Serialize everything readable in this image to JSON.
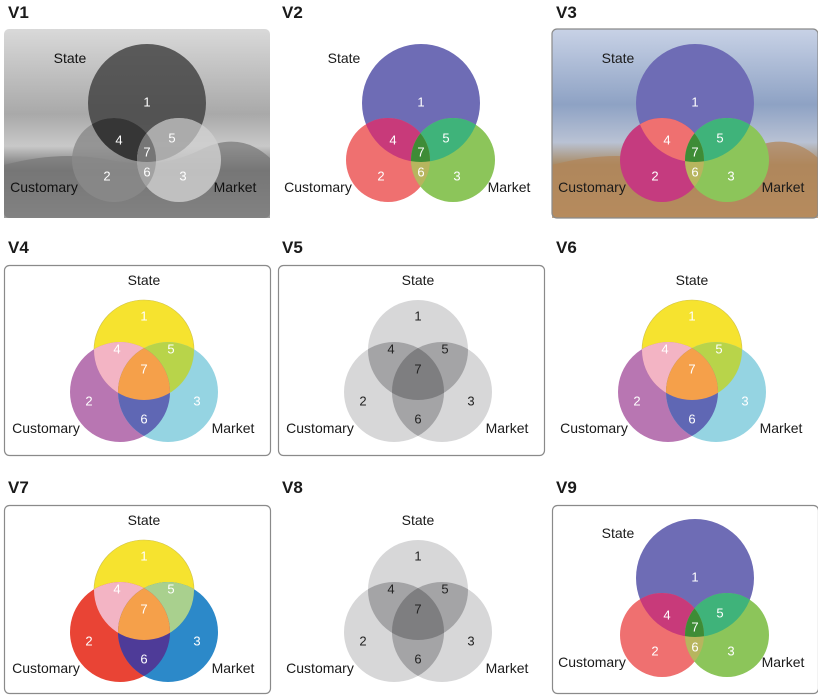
{
  "labels": {
    "state": "State",
    "customary": "Customary",
    "market": "Market"
  },
  "panels": [
    {
      "title": "V1",
      "style": "photo-gray",
      "numbers": [
        "1",
        "2",
        "3",
        "4",
        "5",
        "6",
        "7"
      ]
    },
    {
      "title": "V2",
      "style": "bubble",
      "numbers": [
        "1",
        "2",
        "3",
        "4",
        "5",
        "6",
        "7"
      ]
    },
    {
      "title": "V3",
      "style": "photo-color",
      "numbers": [
        "1",
        "2",
        "3",
        "4",
        "5",
        "6",
        "7"
      ]
    },
    {
      "title": "V4",
      "style": "classic-light",
      "numbers": [
        "1",
        "2",
        "3",
        "4",
        "5",
        "6",
        "7"
      ]
    },
    {
      "title": "V5",
      "style": "gray-boxed",
      "numbers": [
        "1",
        "2",
        "3",
        "4",
        "5",
        "6",
        "7"
      ]
    },
    {
      "title": "V6",
      "style": "classic-light",
      "numbers": [
        "1",
        "2",
        "3",
        "4",
        "5",
        "6",
        "7"
      ]
    },
    {
      "title": "V7",
      "style": "classic-bold",
      "numbers": [
        "1",
        "2",
        "3",
        "4",
        "5",
        "6",
        "7"
      ]
    },
    {
      "title": "V8",
      "style": "gray",
      "numbers": [
        "1",
        "2",
        "3",
        "4",
        "5",
        "6",
        "7"
      ]
    },
    {
      "title": "V9",
      "style": "bubble-boxed",
      "numbers": [
        "1",
        "2",
        "3",
        "4",
        "5",
        "6",
        "7"
      ]
    }
  ],
  "colors": {
    "state_purple": "#6e6cb5",
    "customary_red": "#ef7070",
    "market_green": "#8cc55a",
    "yellow": "#f6e32f",
    "orange": "#f5a04a",
    "violet": "#b46fae",
    "cyan": "#8fd2e0",
    "gray": "#c9c9cb",
    "bold_red": "#e83a2a",
    "bold_blue": "#2183c6"
  }
}
